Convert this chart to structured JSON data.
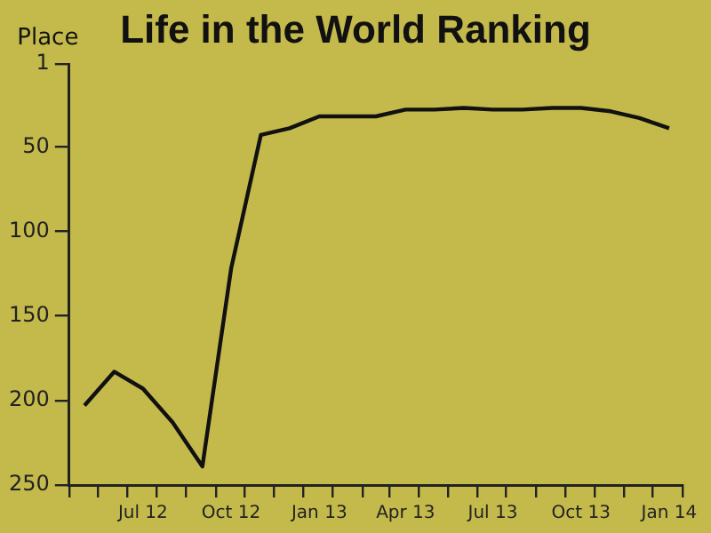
{
  "chart_data": {
    "type": "line",
    "title": "Life in the World Ranking",
    "ylabel": "Place",
    "x": [
      "2012-05-01",
      "2012-06-01",
      "2012-07-01",
      "2012-08-01",
      "2012-09-01",
      "2012-10-01",
      "2012-11-01",
      "2012-12-01",
      "2013-01-01",
      "2013-02-01",
      "2013-03-01",
      "2013-04-01",
      "2013-05-01",
      "2013-06-01",
      "2013-07-01",
      "2013-08-01",
      "2013-09-01",
      "2013-10-01",
      "2013-11-01",
      "2013-12-01",
      "2014-01-01"
    ],
    "series": [
      {
        "color": "#111111",
        "values": [
          203,
          183,
          193,
          213,
          239,
          122,
          43,
          39,
          32,
          32,
          32,
          28,
          28,
          27,
          28,
          28,
          27,
          27,
          29,
          33,
          39
        ]
      }
    ],
    "ylim": [
      250,
      1
    ],
    "yticks": [
      1,
      50,
      100,
      150,
      200,
      250
    ],
    "xlim": [
      "2012-04-15",
      "2014-01-15"
    ],
    "xticks": [
      {
        "value": "2012-04-15",
        "label": null
      },
      {
        "value": "2012-05-15",
        "label": null
      },
      {
        "value": "2012-06-15",
        "label": null
      },
      {
        "value": "2012-07-01",
        "label": "Jul 12"
      },
      {
        "value": "2012-07-15",
        "label": null
      },
      {
        "value": "2012-08-15",
        "label": null
      },
      {
        "value": "2012-09-15",
        "label": null
      },
      {
        "value": "2012-10-01",
        "label": "Oct 12"
      },
      {
        "value": "2012-10-15",
        "label": null
      },
      {
        "value": "2012-11-15",
        "label": null
      },
      {
        "value": "2012-12-15",
        "label": null
      },
      {
        "value": "2013-01-01",
        "label": "Jan 13"
      },
      {
        "value": "2013-01-15",
        "label": null
      },
      {
        "value": "2013-02-15",
        "label": null
      },
      {
        "value": "2013-03-15",
        "label": null
      },
      {
        "value": "2013-04-01",
        "label": "Apr 13"
      },
      {
        "value": "2013-04-15",
        "label": null
      },
      {
        "value": "2013-05-15",
        "label": null
      },
      {
        "value": "2013-06-15",
        "label": null
      },
      {
        "value": "2013-07-01",
        "label": "Jul 13"
      },
      {
        "value": "2013-07-15",
        "label": null
      },
      {
        "value": "2013-08-15",
        "label": null
      },
      {
        "value": "2013-09-15",
        "label": null
      },
      {
        "value": "2013-10-01",
        "label": "Oct 13"
      },
      {
        "value": "2013-10-15",
        "label": null
      },
      {
        "value": "2013-11-15",
        "label": null
      },
      {
        "value": "2013-12-15",
        "label": null
      },
      {
        "value": "2014-01-01",
        "label": "Jan 14"
      },
      {
        "value": "2014-01-15",
        "label": null
      }
    ],
    "grid": false,
    "legend": false,
    "marker": "none",
    "line_style": "solid"
  }
}
